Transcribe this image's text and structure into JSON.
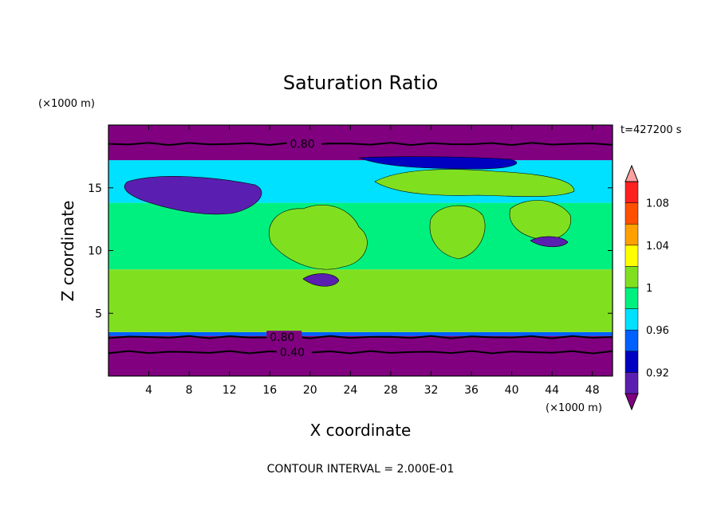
{
  "chart_data": {
    "type": "contour",
    "title": "Saturation Ratio",
    "xlabel": "X coordinate",
    "ylabel": "Z coordinate",
    "x_unit": "(×1000 m)",
    "y_unit": "(×1000 m)",
    "time_label": "t=427200 s",
    "footnote": "CONTOUR INTERVAL = 2.000E-01",
    "xlim": [
      0,
      50
    ],
    "ylim": [
      0,
      20
    ],
    "x_ticks": [
      4,
      8,
      12,
      16,
      20,
      24,
      28,
      32,
      36,
      40,
      44,
      48
    ],
    "y_ticks": [
      5,
      10,
      15
    ],
    "colorbar": {
      "levels": [
        "0.92",
        "0.96",
        "1",
        "1.04",
        "1.08"
      ],
      "level_values": [
        0.92,
        0.96,
        1.0,
        1.04,
        1.08
      ],
      "colors": [
        "#800080",
        "#5a1fb0",
        "#0000c0",
        "#0060ff",
        "#00e0ff",
        "#00f080",
        "#80e020",
        "#ffff00",
        "#ffa000",
        "#ff5000",
        "#ff2020",
        "#ffa0a0"
      ],
      "extend": "both"
    },
    "contour_lines": [
      {
        "value": 0.8,
        "label": "0.80",
        "z": 18.5,
        "label_x": 18
      },
      {
        "value": 0.8,
        "label": "0.80",
        "z": 3.1,
        "label_x": 16
      },
      {
        "value": 0.4,
        "label": "0.40",
        "z": 1.9,
        "label_x": 17
      }
    ],
    "bands": [
      {
        "z_min": 0.0,
        "z_max": 3.2,
        "level": "<0.92",
        "color": "#800080"
      },
      {
        "z_min": 3.2,
        "z_max": 3.5,
        "level": "0.92-0.96",
        "color": "#0060ff"
      },
      {
        "z_min": 3.5,
        "z_max": 8.5,
        "level": "1-1.02",
        "color": "#80e020"
      },
      {
        "z_min": 8.5,
        "z_max": 13.8,
        "level": "0.98-1",
        "color": "#00f080"
      },
      {
        "z_min": 13.8,
        "z_max": 17.2,
        "level": "0.96-0.98",
        "color": "#00e0ff"
      },
      {
        "z_min": 17.2,
        "z_max": 20.0,
        "level": "<0.92",
        "color": "#800080"
      }
    ]
  }
}
